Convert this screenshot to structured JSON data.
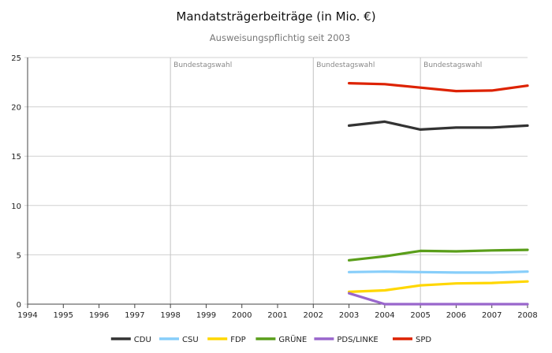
{
  "chart_data": {
    "type": "line",
    "title": "Mandatsträgerbeiträge (in Mio. €)",
    "subtitle": "Ausweisungspflichtig seit 2003",
    "xlabel": "",
    "ylabel": "",
    "xlim": [
      1994,
      2008
    ],
    "ylim": [
      0,
      25
    ],
    "x_ticks": [
      "1994",
      "1995",
      "1996",
      "1997",
      "1998",
      "1999",
      "2000",
      "2001",
      "2002",
      "2003",
      "2004",
      "2005",
      "2006",
      "2007",
      "2008"
    ],
    "y_ticks": [
      "0",
      "5",
      "10",
      "15",
      "20",
      "25"
    ],
    "grid": "horizontal",
    "legend_position": "bottom",
    "annotations": [
      {
        "x": 1998,
        "text": "Bundestagswahl"
      },
      {
        "x": 2002,
        "text": "Bundestagswahl"
      },
      {
        "x": 2005,
        "text": "Bundestagswahl"
      }
    ],
    "x": [
      2003,
      2004,
      2005,
      2006,
      2007,
      2008
    ],
    "series": [
      {
        "name": "CDU",
        "color": "#333333",
        "values": [
          18.1,
          18.5,
          17.7,
          17.9,
          17.9,
          18.1
        ]
      },
      {
        "name": "CSU",
        "color": "#87cefa",
        "values": [
          3.25,
          3.3,
          3.25,
          3.2,
          3.2,
          3.3
        ]
      },
      {
        "name": "FDP",
        "color": "#ffd700",
        "values": [
          1.25,
          1.4,
          1.9,
          2.1,
          2.15,
          2.3
        ]
      },
      {
        "name": "GRÜNE",
        "color": "#5a9e1a",
        "values": [
          4.45,
          4.85,
          5.4,
          5.35,
          5.45,
          5.5
        ]
      },
      {
        "name": "PDS/LINKE",
        "color": "#9966cc",
        "values": [
          1.1,
          0.0,
          0.0,
          0.0,
          0.0,
          0.0
        ]
      },
      {
        "name": "SPD",
        "color": "#dd2200",
        "values": [
          22.4,
          22.3,
          21.95,
          21.6,
          21.65,
          22.15
        ]
      }
    ]
  }
}
